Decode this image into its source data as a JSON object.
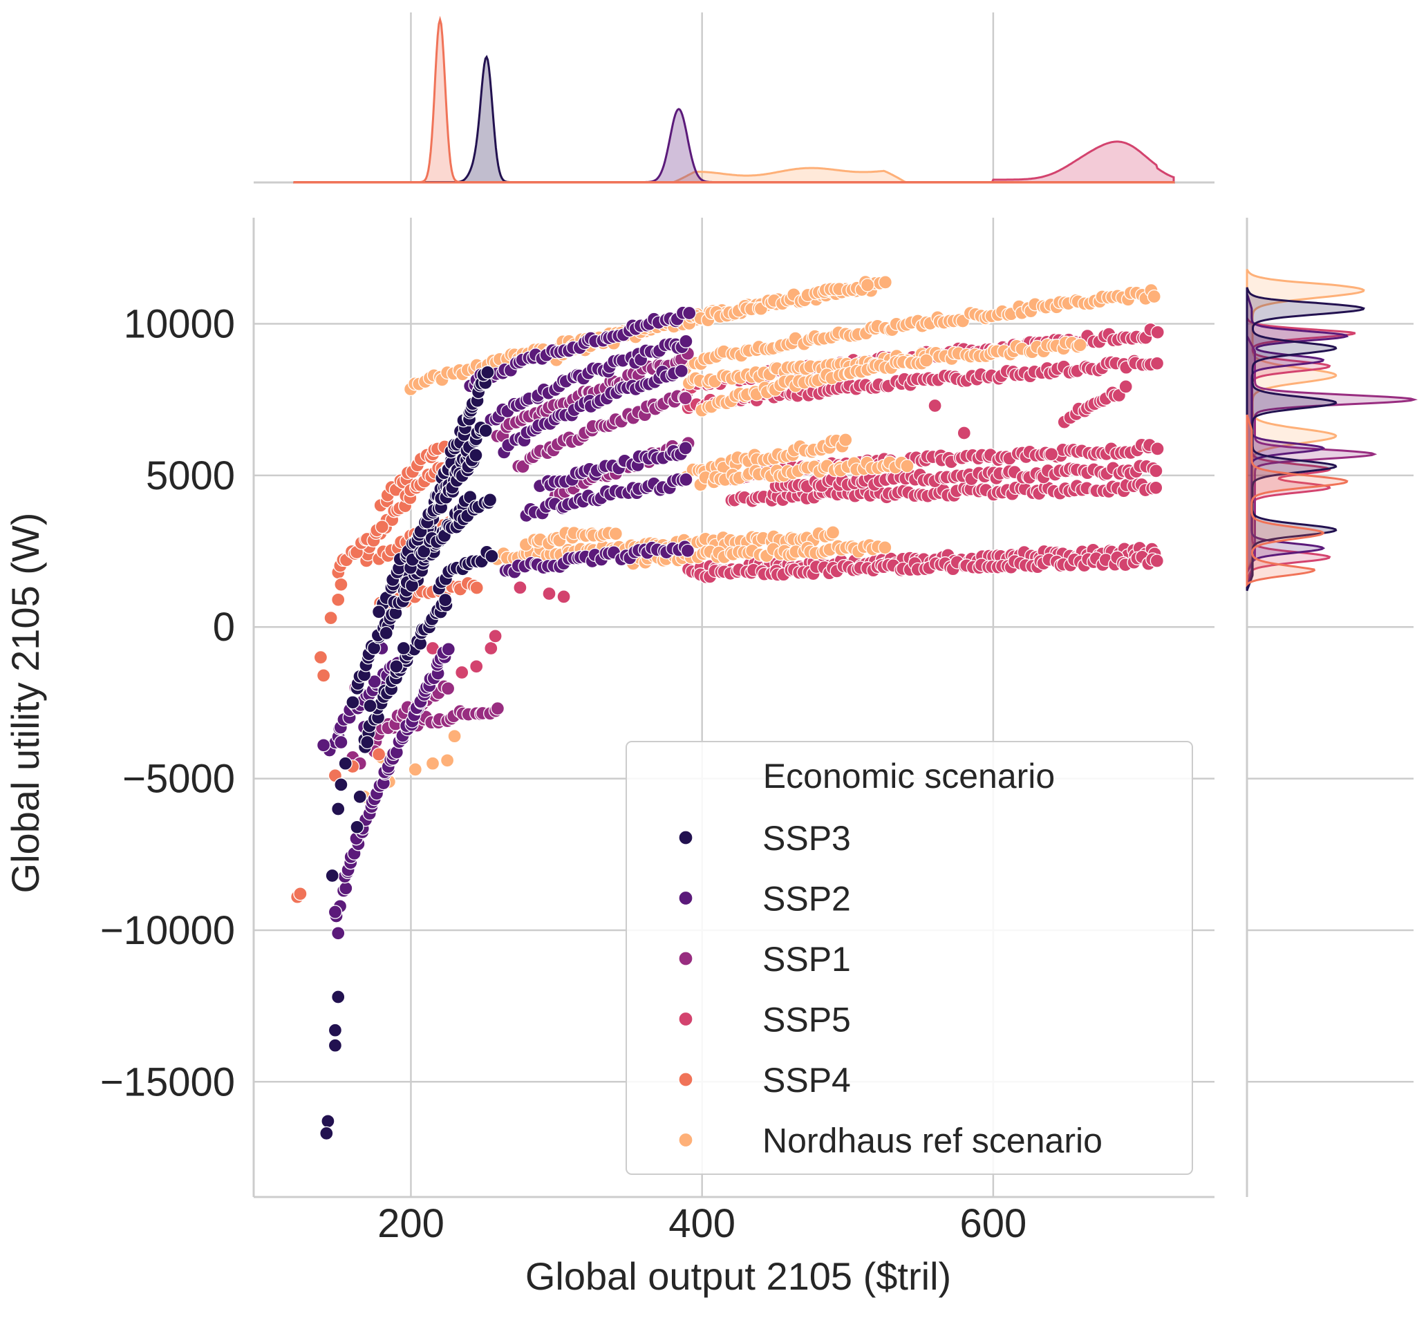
{
  "chart_data": {
    "type": "scatter",
    "title": "",
    "xlabel": "Global output 2105 ($tril)",
    "ylabel": "Global utility 2105 (W)",
    "xlim": [
      92,
      752
    ],
    "ylim": [
      -18800,
      13500
    ],
    "xticks": [
      200,
      400,
      600
    ],
    "yticks": [
      10000,
      5000,
      0,
      -5000,
      -10000,
      -15000
    ],
    "xtick_labels": [
      "200",
      "400",
      "600"
    ],
    "ytick_labels": [
      "10000",
      "5000",
      "0",
      "−5000",
      "−10000",
      "−15000"
    ],
    "grid": true,
    "legend": {
      "title": "Economic scenario",
      "placement": "lower-right"
    },
    "series": [
      {
        "name": "SSP3",
        "color": "#221150",
        "segments": [
          {
            "x": [
              205,
              252
            ],
            "y": [
              1500,
              8400
            ]
          },
          {
            "x": [
              195,
              250
            ],
            "y": [
              1200,
              6600
            ]
          },
          {
            "x": [
              180,
              245
            ],
            "y": [
              500,
              5600
            ]
          },
          {
            "x": [
              160,
              240
            ],
            "y": [
              -2500,
              4200
            ]
          },
          {
            "x": [
              168,
              225
            ],
            "y": [
              -4000,
              900
            ]
          },
          {
            "x": [
              200,
              255
            ],
            "y": [
              2000,
              4200
            ]
          },
          {
            "x": [
              218,
              255
            ],
            "y": [
              1400,
              2400
            ]
          }
        ],
        "points": [
          [
            143,
            -16300
          ],
          [
            142,
            -16700
          ],
          [
            148,
            -13300
          ],
          [
            148,
            -13800
          ],
          [
            150,
            -12200
          ],
          [
            146,
            -8200
          ],
          [
            150,
            -6000
          ],
          [
            152,
            -5200
          ],
          [
            155,
            -4500
          ],
          [
            163,
            -6600
          ],
          [
            165,
            -5600
          ],
          [
            170,
            -3800
          ],
          [
            172,
            -2600
          ],
          [
            190,
            -1300
          ],
          [
            195,
            -700
          ],
          [
            183,
            -200
          ],
          [
            178,
            500
          ]
        ]
      },
      {
        "name": "SSP2",
        "color": "#5b1a7a",
        "segments": [
          {
            "x": [
              240,
              390
            ],
            "y": [
              7900,
              10300
            ]
          },
          {
            "x": [
              255,
              390
            ],
            "y": [
              6800,
              9400
            ]
          },
          {
            "x": [
              265,
              385
            ],
            "y": [
              5800,
              8500
            ]
          },
          {
            "x": [
              290,
              390
            ],
            "y": [
              4600,
              5800
            ]
          },
          {
            "x": [
              280,
              390
            ],
            "y": [
              3700,
              4800
            ]
          },
          {
            "x": [
              265,
              390
            ],
            "y": [
              1800,
              2600
            ]
          },
          {
            "x": [
              150,
              225
            ],
            "y": [
              -9500,
              -800
            ]
          },
          {
            "x": [
              145,
              190
            ],
            "y": [
              -4000,
              -1200
            ]
          }
        ],
        "points": [
          [
            150,
            -10100
          ],
          [
            148,
            -9400
          ],
          [
            140,
            -3900
          ],
          [
            152,
            -3800
          ],
          [
            168,
            -3300
          ],
          [
            175,
            -1800
          ],
          [
            180,
            -700
          ]
        ]
      },
      {
        "name": "SSP1",
        "color": "#982d80",
        "segments": [
          {
            "x": [
              260,
              390
            ],
            "y": [
              6200,
              8900
            ]
          },
          {
            "x": [
              275,
              390
            ],
            "y": [
              5200,
              7600
            ]
          },
          {
            "x": [
              300,
              390
            ],
            "y": [
              4200,
              6000
            ]
          },
          {
            "x": [
              185,
              260
            ],
            "y": [
              -3400,
              -2700
            ]
          },
          {
            "x": [
              170,
              225
            ],
            "y": [
              -4000,
              -2000
            ]
          }
        ],
        "points": [
          [
            160,
            -4300
          ],
          [
            165,
            -4500
          ],
          [
            175,
            -4100
          ],
          [
            162,
            -2000
          ]
        ]
      },
      {
        "name": "SSP5",
        "color": "#d3436e",
        "segments": [
          {
            "x": [
              390,
              712
            ],
            "y": [
              7800,
              9700
            ]
          },
          {
            "x": [
              390,
              712
            ],
            "y": [
              7200,
              8700
            ]
          },
          {
            "x": [
              420,
              712
            ],
            "y": [
              5000,
              5900
            ]
          },
          {
            "x": [
              420,
              712
            ],
            "y": [
              4200,
              4600
            ]
          },
          {
            "x": [
              450,
              712
            ],
            "y": [
              4600,
              5200
            ]
          },
          {
            "x": [
              390,
              712
            ],
            "y": [
              1800,
              2500
            ]
          },
          {
            "x": [
              400,
              712
            ],
            "y": [
              1700,
              2200
            ]
          },
          {
            "x": [
              650,
              690
            ],
            "y": [
              6800,
              7800
            ]
          }
        ],
        "points": [
          [
            215,
            -700
          ],
          [
            235,
            -1500
          ],
          [
            245,
            -1300
          ],
          [
            255,
            -700
          ],
          [
            258,
            -300
          ],
          [
            275,
            1300
          ],
          [
            295,
            1100
          ],
          [
            305,
            1000
          ],
          [
            560,
            7300
          ],
          [
            580,
            6400
          ],
          [
            640,
            5700
          ]
        ]
      },
      {
        "name": "SSP4",
        "color": "#f07358",
        "segments": [
          {
            "x": [
              180,
              222
            ],
            "y": [
              4000,
              6000
            ]
          },
          {
            "x": [
              168,
              220
            ],
            "y": [
              2200,
              5300
            ]
          },
          {
            "x": [
              178,
              232
            ],
            "y": [
              2200,
              3600
            ]
          },
          {
            "x": [
              180,
              245
            ],
            "y": [
              700,
              1400
            ]
          },
          {
            "x": [
              150,
              180
            ],
            "y": [
              1800,
              3200
            ]
          }
        ],
        "points": [
          [
            122,
            -8900
          ],
          [
            124,
            -8800
          ],
          [
            138,
            -1000
          ],
          [
            140,
            -1600
          ],
          [
            148,
            -4900
          ],
          [
            160,
            -4600
          ],
          [
            178,
            -4200
          ],
          [
            150,
            900
          ],
          [
            152,
            1400
          ],
          [
            145,
            300
          ]
        ]
      },
      {
        "name": "Nordhaus ref scenario",
        "color": "#feb078",
        "segments": [
          {
            "x": [
              200,
              525
            ],
            "y": [
              7800,
              11300
            ]
          },
          {
            "x": [
              300,
              515
            ],
            "y": [
              8800,
              11300
            ]
          },
          {
            "x": [
              390,
              712
            ],
            "y": [
              8600,
              11000
            ]
          },
          {
            "x": [
              390,
              660
            ],
            "y": [
              8000,
              9300
            ]
          },
          {
            "x": [
              400,
              555
            ],
            "y": [
              7200,
              8800
            ]
          },
          {
            "x": [
              390,
              500
            ],
            "y": [
              5000,
              6100
            ]
          },
          {
            "x": [
              400,
              540
            ],
            "y": [
              4800,
              5400
            ]
          },
          {
            "x": [
              260,
              490
            ],
            "y": [
              2300,
              3000
            ]
          },
          {
            "x": [
              350,
              525
            ],
            "y": [
              2200,
              2600
            ]
          },
          {
            "x": [
              280,
              340
            ],
            "y": [
              2700,
              3200
            ]
          }
        ],
        "points": [
          [
            168,
            -5600
          ],
          [
            180,
            -4300
          ],
          [
            185,
            -5100
          ],
          [
            203,
            -4700
          ],
          [
            215,
            -4500
          ],
          [
            225,
            -4400
          ],
          [
            230,
            -3600
          ]
        ]
      }
    ],
    "marginal_x_kde": {
      "SSP4": {
        "peak": 220,
        "sd": 3.5,
        "height": 1.0
      },
      "SSP3": {
        "peak": 252,
        "sd": 4.0,
        "height": 0.76
      },
      "SSP2": {
        "peak": 384,
        "sd": 6.0,
        "height": 0.45
      },
      "SSP5": {
        "peak": 688,
        "sd": 18.0,
        "height": 0.22
      },
      "Nordhaus ref scenario": {
        "range": [
          390,
          530
        ],
        "height": 0.08
      }
    },
    "marginal_y_kde": {
      "Nordhaus ref scenario": {
        "peaks": [
          11100,
          8300,
          6300
        ],
        "height": 0.7
      },
      "SSP3": {
        "peaks": [
          10500,
          9200,
          7400,
          5300,
          3200
        ],
        "height": 0.7
      },
      "SSP2": {
        "peaks": [
          9600,
          8800,
          5900,
          2600
        ],
        "height": 0.6
      },
      "SSP1": {
        "peaks": [
          7500,
          5700
        ],
        "height": 1.0
      },
      "SSP5": {
        "peaks": [
          9700,
          8600,
          5200,
          4600,
          2300
        ],
        "height": 0.65
      },
      "SSP4": {
        "peaks": [
          4800,
          3100,
          1800
        ],
        "height": 0.6
      }
    }
  }
}
